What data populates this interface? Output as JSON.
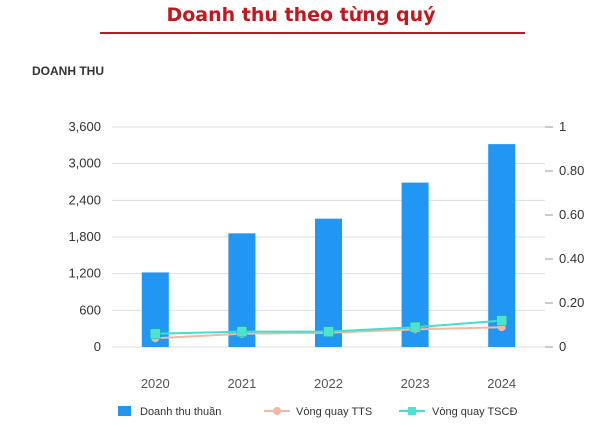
{
  "header": {
    "title": "Doanh thu theo từng quý"
  },
  "section_label": "DOANH THU",
  "colors": {
    "title": "#c4161c",
    "bar": "#2196f3",
    "tts_line": "#f5b7a1",
    "tts_marker": "#f5b7a1",
    "tscd_line": "#3fe0d0",
    "tscd_marker": "#4fe3cd",
    "grid": "#dddddd"
  },
  "chart_data": {
    "type": "bar",
    "categories": [
      "2020",
      "2021",
      "2022",
      "2023",
      "2024"
    ],
    "series": [
      {
        "name": "Doanh thu thuần",
        "type": "bar",
        "axis": "left",
        "values": [
          1220,
          1860,
          2100,
          2690,
          3320
        ]
      },
      {
        "name": "Vòng quay TTS",
        "type": "line",
        "axis": "right",
        "values": [
          0.04,
          0.06,
          0.065,
          0.08,
          0.09
        ]
      },
      {
        "name": "Vòng quay TSCĐ",
        "type": "line",
        "axis": "right",
        "values": [
          0.06,
          0.07,
          0.07,
          0.09,
          0.12
        ]
      }
    ],
    "y_left": {
      "ticks": [
        "0",
        "600",
        "1,200",
        "1,800",
        "2,400",
        "3,000",
        "3,600"
      ],
      "range": [
        0,
        3600
      ]
    },
    "y_right": {
      "ticks": [
        "0",
        "0.20",
        "0.40",
        "0.60",
        "0.80",
        "1"
      ],
      "range": [
        0,
        1
      ]
    },
    "grid": true,
    "legend_position": "bottom"
  }
}
